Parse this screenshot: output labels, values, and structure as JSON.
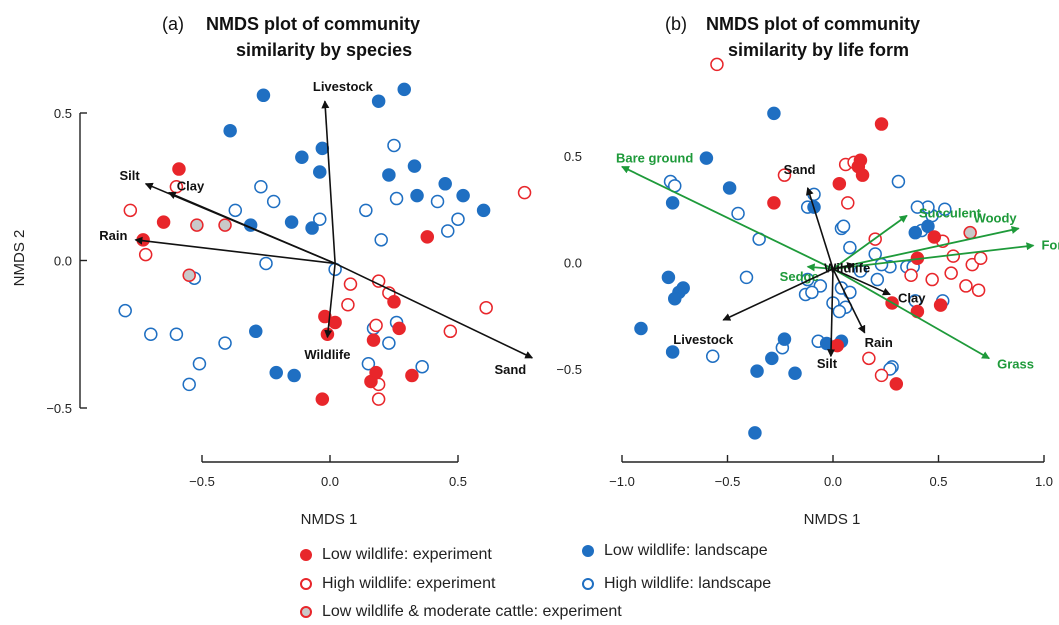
{
  "colors": {
    "red": "#e8262b",
    "blue": "#1f6fc2",
    "grey_fill": "#c9c9c9",
    "green": "#1e9a3a",
    "axis": "#222222"
  },
  "legend": [
    {
      "label": "Low wildlife: experiment",
      "style": "red_filled"
    },
    {
      "label": "Low wildlife: landscape",
      "style": "blue_filled"
    },
    {
      "label": "High wildlife: experiment",
      "style": "red_open"
    },
    {
      "label": "High wildlife: landscape",
      "style": "blue_open"
    },
    {
      "label": "Low wildlife & moderate cattle: experiment",
      "style": "grey_red"
    }
  ],
  "chart_data": [
    {
      "type": "scatter",
      "panel_label": "(a)",
      "title": "NMDS plot of community similarity by species",
      "title_lines": [
        "NMDS plot of community",
        "similarity by species"
      ],
      "xlabel": "NMDS 1",
      "ylabel": "NMDS 2",
      "xlim": [
        -0.78,
        0.82
      ],
      "ylim": [
        -0.58,
        0.62
      ],
      "xticks": [
        -0.5,
        0.0,
        0.5
      ],
      "xtick_labels": [
        "−0.5",
        "0.0",
        "0.5"
      ],
      "yticks": [
        -0.5,
        0.0,
        0.5
      ],
      "ytick_labels": [
        "−0.5",
        "0.0",
        "0.5"
      ],
      "vector_origin": [
        0.02,
        -0.01
      ],
      "vectors": [
        {
          "label": "Livestock",
          "end": [
            -0.02,
            0.54
          ],
          "color": "black"
        },
        {
          "label": "Clay",
          "end": [
            -0.63,
            0.23
          ],
          "color": "black"
        },
        {
          "label": "Silt",
          "end": [
            -0.72,
            0.26
          ],
          "color": "black"
        },
        {
          "label": "Rain",
          "end": [
            -0.76,
            0.07
          ],
          "color": "black"
        },
        {
          "label": "Sand",
          "end": [
            0.79,
            -0.33
          ],
          "color": "black"
        },
        {
          "label": "Wildlife",
          "end": [
            -0.01,
            -0.26
          ],
          "color": "black"
        }
      ],
      "series": [
        {
          "name": "Low wildlife: experiment",
          "style": "red_filled",
          "x": [
            -0.59,
            -0.65,
            -0.73,
            0.38,
            -0.02,
            -0.01,
            0.25,
            0.17,
            0.27,
            0.18,
            0.16,
            0.32,
            -0.03,
            0.02
          ],
          "y": [
            0.31,
            0.13,
            0.07,
            0.08,
            -0.19,
            -0.25,
            -0.14,
            -0.27,
            -0.23,
            -0.38,
            -0.41,
            -0.39,
            -0.47,
            -0.21
          ]
        },
        {
          "name": "Low wildlife: landscape",
          "style": "blue_filled",
          "x": [
            -0.39,
            -0.26,
            -0.11,
            -0.04,
            -0.03,
            0.19,
            0.29,
            0.23,
            0.33,
            0.34,
            0.45,
            0.52,
            0.6,
            -0.15,
            -0.07,
            -0.31,
            -0.29,
            -0.21,
            -0.14
          ],
          "y": [
            0.44,
            0.56,
            0.35,
            0.3,
            0.38,
            0.54,
            0.58,
            0.29,
            0.32,
            0.22,
            0.26,
            0.22,
            0.17,
            0.13,
            0.11,
            0.12,
            -0.24,
            -0.38,
            -0.39
          ]
        },
        {
          "name": "High wildlife: experiment",
          "style": "red_open",
          "x": [
            -0.6,
            -0.78,
            -0.72,
            0.08,
            0.07,
            0.19,
            0.18,
            0.47,
            0.61,
            0.23,
            0.19,
            0.76,
            0.19
          ],
          "y": [
            0.25,
            0.17,
            0.02,
            -0.08,
            -0.15,
            -0.07,
            -0.22,
            -0.24,
            -0.16,
            -0.11,
            -0.47,
            0.23,
            -0.42
          ]
        },
        {
          "name": "High wildlife: landscape",
          "style": "blue_open",
          "x": [
            -0.37,
            -0.27,
            -0.22,
            -0.25,
            -0.53,
            -0.8,
            -0.7,
            -0.6,
            -0.41,
            -0.51,
            -0.55,
            -0.04,
            0.02,
            0.14,
            0.2,
            0.25,
            0.26,
            0.42,
            0.46,
            0.5,
            0.17,
            0.26,
            0.23,
            0.36,
            0.15
          ],
          "y": [
            0.17,
            0.25,
            0.2,
            -0.01,
            -0.06,
            -0.17,
            -0.25,
            -0.25,
            -0.28,
            -0.35,
            -0.42,
            0.14,
            -0.03,
            0.17,
            0.07,
            0.39,
            0.21,
            0.2,
            0.1,
            0.14,
            -0.23,
            -0.21,
            -0.28,
            -0.36,
            -0.35
          ]
        },
        {
          "name": "Low wildlife & moderate cattle: experiment",
          "style": "grey_red",
          "x": [
            -0.52,
            -0.41,
            -0.55
          ],
          "y": [
            0.12,
            0.12,
            -0.05
          ]
        }
      ]
    },
    {
      "type": "scatter",
      "panel_label": "(b)",
      "title": "NMDS plot of community similarity by life form",
      "title_lines": [
        "NMDS plot of community",
        "similarity by life form"
      ],
      "xlabel": "NMDS 1",
      "ylabel": "",
      "xlim": [
        -1.1,
        1.1
      ],
      "ylim": [
        -0.87,
        0.75
      ],
      "xticks": [
        -1.0,
        -0.5,
        0.0,
        0.5,
        1.0
      ],
      "xtick_labels": [
        "−1.0",
        "−0.5",
        "0.0",
        "0.5",
        "1.0"
      ],
      "yticks": [
        -0.5,
        0.0,
        0.5
      ],
      "ytick_labels": [
        "−0.5",
        "0.0",
        "0.5"
      ],
      "vector_origin": [
        0.0,
        -0.03
      ],
      "vectors": [
        {
          "label": "Bare ground",
          "end": [
            -1.0,
            0.45
          ],
          "color": "green"
        },
        {
          "label": "Succulent",
          "end": [
            0.35,
            0.22
          ],
          "color": "green"
        },
        {
          "label": "Woody",
          "end": [
            0.88,
            0.16
          ],
          "color": "green"
        },
        {
          "label": "Forb",
          "end": [
            0.95,
            0.08
          ],
          "color": "green"
        },
        {
          "label": "Grass",
          "end": [
            0.74,
            -0.45
          ],
          "color": "green"
        },
        {
          "label": "Sedge",
          "end": [
            -0.12,
            -0.02
          ],
          "color": "green"
        },
        {
          "label": "Sand",
          "end": [
            -0.12,
            0.35
          ],
          "color": "black"
        },
        {
          "label": "Wildlife",
          "end": [
            0.1,
            -0.01
          ],
          "color": "black"
        },
        {
          "label": "Clay",
          "end": [
            0.27,
            -0.15
          ],
          "color": "black"
        },
        {
          "label": "Livestock",
          "end": [
            -0.52,
            -0.27
          ],
          "color": "black"
        },
        {
          "label": "Rain",
          "end": [
            0.15,
            -0.33
          ],
          "color": "black"
        },
        {
          "label": "Silt",
          "end": [
            -0.01,
            -0.44
          ],
          "color": "black"
        }
      ],
      "series": [
        {
          "name": "Low wildlife: experiment",
          "style": "red_filled",
          "x": [
            0.23,
            0.13,
            0.12,
            0.14,
            0.03,
            -0.28,
            0.4,
            0.48,
            0.51,
            0.28,
            0.4,
            0.02,
            0.3
          ],
          "y": [
            0.65,
            0.48,
            0.45,
            0.41,
            0.37,
            0.28,
            0.02,
            0.12,
            -0.2,
            -0.19,
            -0.23,
            -0.39,
            -0.57
          ]
        },
        {
          "name": "Low wildlife: landscape",
          "style": "blue_filled",
          "x": [
            -0.6,
            -0.49,
            -0.28,
            -0.76,
            -0.09,
            -0.78,
            -0.73,
            -0.75,
            -0.71,
            -0.91,
            -0.76,
            -0.36,
            -0.29,
            -0.23,
            -0.18,
            -0.37,
            0.39,
            0.45,
            -0.03,
            0.04
          ],
          "y": [
            0.49,
            0.35,
            0.7,
            0.28,
            0.26,
            -0.07,
            -0.14,
            -0.17,
            -0.12,
            -0.31,
            -0.42,
            -0.51,
            -0.45,
            -0.36,
            -0.52,
            -0.8,
            0.14,
            0.17,
            -0.38,
            -0.37
          ]
        },
        {
          "name": "High wildlife: experiment",
          "style": "red_open",
          "x": [
            -0.55,
            -0.23,
            0.06,
            0.1,
            0.07,
            0.2,
            0.52,
            0.57,
            0.66,
            0.56,
            0.7,
            0.69,
            0.63,
            0.37,
            0.47,
            0.17,
            0.23
          ],
          "y": [
            0.93,
            0.41,
            0.46,
            0.47,
            0.28,
            0.11,
            0.1,
            0.03,
            -0.01,
            -0.05,
            0.02,
            -0.13,
            -0.11,
            -0.06,
            -0.08,
            -0.45,
            -0.53
          ]
        },
        {
          "name": "High wildlife: landscape",
          "style": "blue_open",
          "x": [
            -0.77,
            -0.75,
            -0.45,
            -0.35,
            -0.41,
            -0.09,
            -0.12,
            0.04,
            0.05,
            0.08,
            0.13,
            0.21,
            0.27,
            0.35,
            0.38,
            0.42,
            0.47,
            0.53,
            0.45,
            0.4,
            0.2,
            0.23,
            0.31,
            0.39,
            0.52,
            -0.57,
            -0.12,
            -0.13,
            -0.06,
            -0.1,
            0.0,
            0.04,
            0.08,
            0.06,
            0.03,
            -0.07,
            -0.24,
            0.28,
            0.27
          ],
          "y": [
            0.38,
            0.36,
            0.23,
            0.11,
            -0.07,
            0.32,
            0.26,
            0.16,
            0.17,
            0.07,
            -0.04,
            -0.08,
            -0.02,
            -0.02,
            -0.02,
            0.15,
            0.22,
            0.25,
            0.26,
            0.26,
            0.04,
            -0.01,
            0.38,
            -0.18,
            -0.18,
            -0.44,
            -0.08,
            -0.15,
            -0.11,
            -0.14,
            -0.19,
            -0.12,
            -0.14,
            -0.21,
            -0.23,
            -0.37,
            -0.4,
            -0.49,
            -0.5
          ]
        },
        {
          "name": "Low wildlife & moderate cattle: experiment",
          "style": "grey_red",
          "x": [
            0.65
          ],
          "y": [
            0.14
          ]
        }
      ]
    }
  ]
}
